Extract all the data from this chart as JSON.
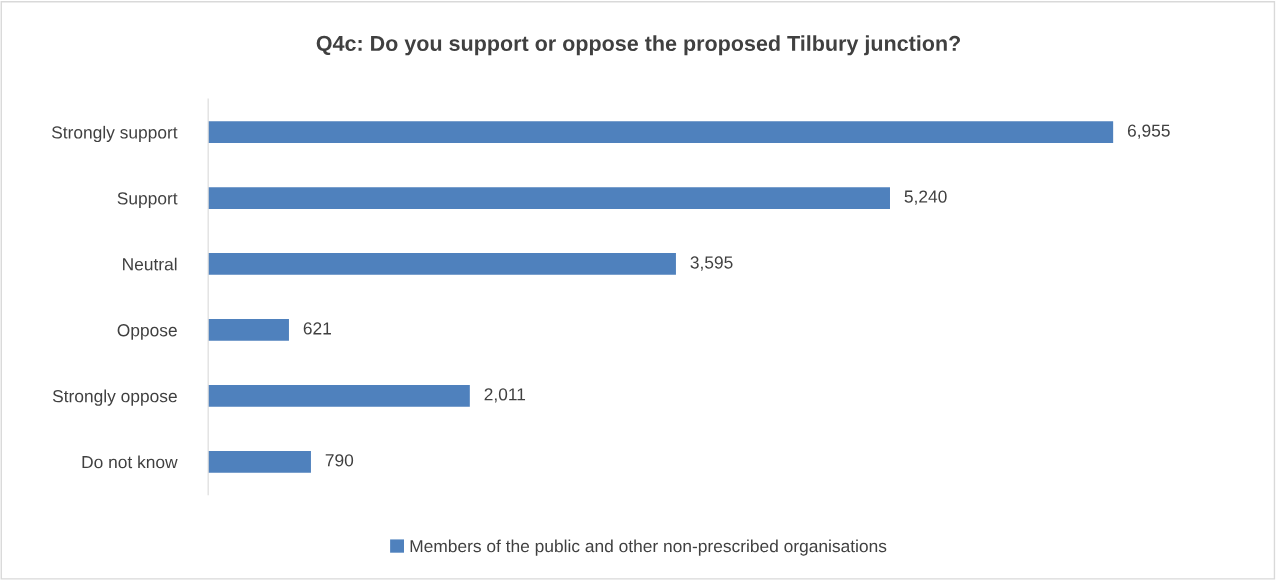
{
  "chart_data": {
    "type": "bar",
    "orientation": "horizontal",
    "title": "Q4c: Do you support or oppose the proposed Tilbury junction?",
    "categories": [
      "Strongly support",
      "Support",
      "Neutral",
      "Oppose",
      "Strongly oppose",
      "Do not know"
    ],
    "series": [
      {
        "name": "Members of the public and other non-prescribed organisations",
        "color": "#4f81bd",
        "values": [
          6955,
          5240,
          3595,
          621,
          2011,
          790
        ],
        "value_labels": [
          "6,955",
          "5,240",
          "3,595",
          "621",
          "2,011",
          "790"
        ]
      }
    ],
    "legend": "bottom",
    "grid": false
  }
}
